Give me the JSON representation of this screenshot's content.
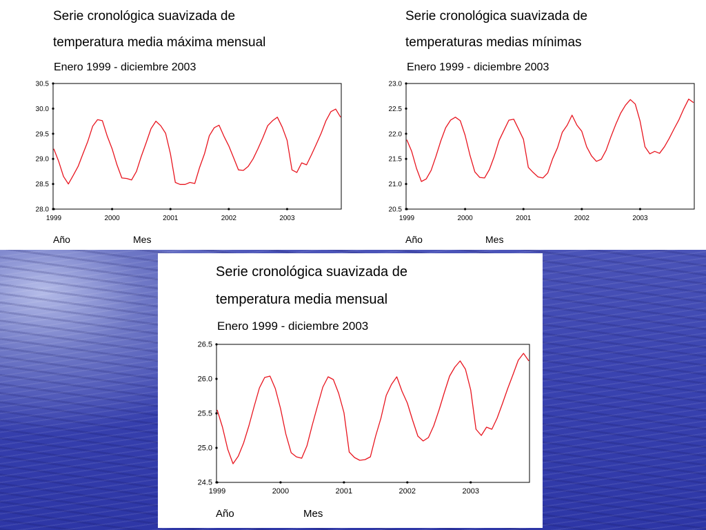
{
  "chart_data": [
    {
      "type": "line",
      "title_line1": "Serie cronológica suavizada de",
      "title_line2": "temperatura media máxima mensual",
      "subtitle": "Enero 1999 - diciembre 2003",
      "xlabel_year": "Año",
      "xlabel_month": "Mes",
      "x_ticks": [
        "1999",
        "2000",
        "2001",
        "2002",
        "2003"
      ],
      "y_ticks": [
        "28.0",
        "28.5",
        "29.0",
        "29.5",
        "30.0",
        "30.5"
      ],
      "ylim": [
        28.0,
        30.5
      ],
      "line_color": "#e8141e",
      "series": [
        {
          "values": [
            29.2,
            28.95,
            28.65,
            28.5,
            28.67,
            28.85,
            29.1,
            29.35,
            29.65,
            29.78,
            29.76,
            29.45,
            29.2,
            28.88,
            28.62,
            28.61,
            28.58,
            28.75,
            29.05,
            29.32,
            29.6,
            29.75,
            29.66,
            29.51,
            29.1,
            28.53,
            28.49,
            28.49,
            28.53,
            28.51,
            28.83,
            29.1,
            29.46,
            29.62,
            29.67,
            29.45,
            29.26,
            29.02,
            28.78,
            28.77,
            28.85,
            29.0,
            29.2,
            29.42,
            29.66,
            29.76,
            29.83,
            29.63,
            29.37,
            28.78,
            28.73,
            28.92,
            28.88,
            29.08,
            29.29,
            29.51,
            29.76,
            29.94,
            29.99,
            29.83
          ]
        }
      ]
    },
    {
      "type": "line",
      "title_line1": "Serie cronológica suavizada de",
      "title_line2": "temperaturas medias mínimas",
      "subtitle": "Enero 1999 - diciembre 2003",
      "xlabel_year": "Año",
      "xlabel_month": "Mes",
      "x_ticks": [
        "1999",
        "2000",
        "2001",
        "2002",
        "2003"
      ],
      "y_ticks": [
        "20.5",
        "21.0",
        "21.5",
        "22.0",
        "22.5",
        "23.0"
      ],
      "ylim": [
        20.5,
        23.0
      ],
      "line_color": "#e8141e",
      "series": [
        {
          "values": [
            21.88,
            21.65,
            21.31,
            21.05,
            21.1,
            21.27,
            21.55,
            21.86,
            22.12,
            22.27,
            22.33,
            22.26,
            21.97,
            21.57,
            21.24,
            21.13,
            21.12,
            21.29,
            21.55,
            21.87,
            22.07,
            22.27,
            22.29,
            22.09,
            21.89,
            21.33,
            21.23,
            21.14,
            21.12,
            21.22,
            21.5,
            21.72,
            22.03,
            22.17,
            22.37,
            22.17,
            22.05,
            21.74,
            21.56,
            21.45,
            21.49,
            21.67,
            21.94,
            22.19,
            22.41,
            22.57,
            22.68,
            22.59,
            22.25,
            21.74,
            21.6,
            21.65,
            21.61,
            21.74,
            21.91,
            22.1,
            22.28,
            22.5,
            22.69,
            22.62
          ]
        }
      ]
    },
    {
      "type": "line",
      "title_line1": "Serie cronológica suavizada de",
      "title_line2": "temperatura media mensual",
      "subtitle": "Enero 1999 - diciembre 2003",
      "xlabel_year": "Año",
      "xlabel_month": "Mes",
      "x_ticks": [
        "1999",
        "2000",
        "2001",
        "2002",
        "2003"
      ],
      "y_ticks": [
        "24.5",
        "25.0",
        "25.5",
        "26.0",
        "26.5"
      ],
      "ylim": [
        24.5,
        26.5
      ],
      "line_color": "#e8141e",
      "series": [
        {
          "values": [
            25.55,
            25.3,
            24.98,
            24.77,
            24.88,
            25.07,
            25.32,
            25.6,
            25.87,
            26.02,
            26.04,
            25.86,
            25.57,
            25.2,
            24.93,
            24.87,
            24.85,
            25.03,
            25.33,
            25.61,
            25.88,
            26.03,
            25.99,
            25.79,
            25.51,
            24.94,
            24.86,
            24.82,
            24.83,
            24.87,
            25.17,
            25.43,
            25.76,
            25.92,
            26.03,
            25.82,
            25.65,
            25.4,
            25.17,
            25.1,
            25.15,
            25.32,
            25.55,
            25.8,
            26.04,
            26.17,
            26.26,
            26.14,
            25.84,
            25.27,
            25.18,
            25.3,
            25.27,
            25.43,
            25.64,
            25.86,
            26.06,
            26.27,
            26.37,
            26.26
          ]
        }
      ]
    }
  ]
}
